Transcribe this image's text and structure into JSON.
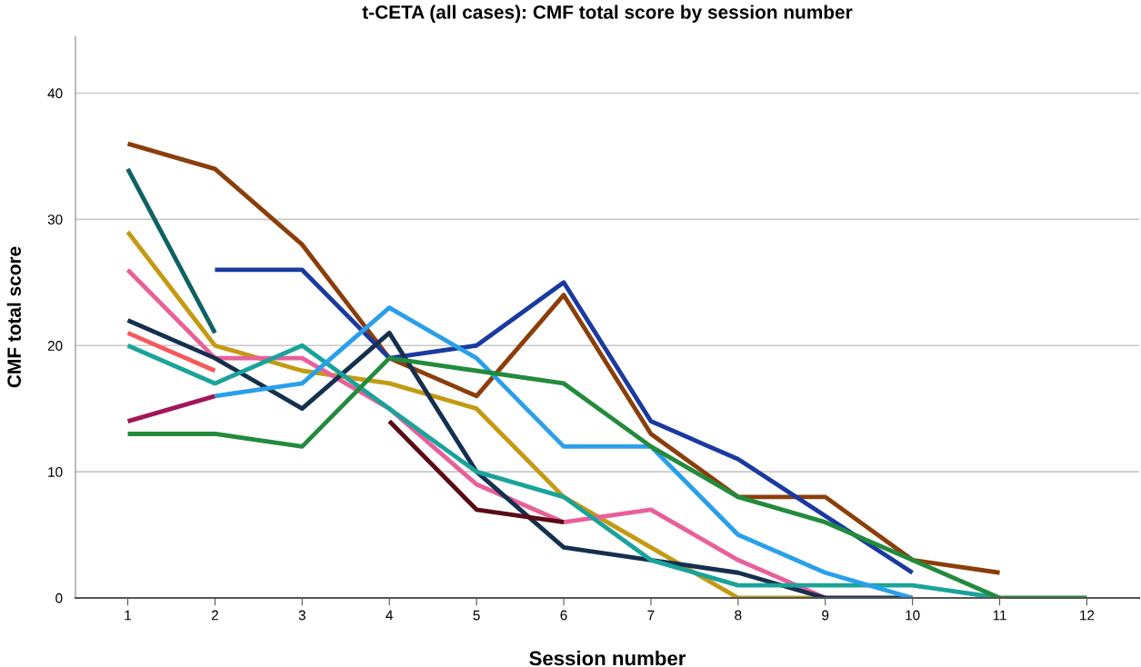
{
  "chart_data": {
    "type": "line",
    "title": "t-CETA (all cases): CMF total score by session number",
    "xlabel": "Session number",
    "ylabel": "CMF total score",
    "x": [
      1,
      2,
      3,
      4,
      5,
      6,
      7,
      8,
      9,
      10,
      11,
      12
    ],
    "series": [
      {
        "color": "#8b3e0a",
        "values": [
          36,
          34,
          28,
          19,
          16,
          24,
          13,
          8,
          8,
          3,
          2,
          null
        ]
      },
      {
        "color": "#0e6262",
        "values": [
          34,
          21,
          null,
          null,
          null,
          null,
          null,
          null,
          null,
          null,
          null,
          null
        ]
      },
      {
        "color": "#c39a12",
        "values": [
          29,
          20,
          18,
          17,
          15,
          8,
          4,
          0,
          0,
          null,
          null,
          null
        ]
      },
      {
        "color": "#e8609a",
        "values": [
          26,
          19,
          19,
          15,
          9,
          6,
          7,
          3,
          0,
          null,
          null,
          null
        ]
      },
      {
        "color": "#1a3aa0",
        "values": [
          null,
          26,
          26,
          19,
          20,
          25,
          14,
          11,
          6.5,
          2,
          null,
          null
        ]
      },
      {
        "color": "#15304f",
        "values": [
          22,
          19,
          15,
          21,
          10,
          4,
          3,
          2,
          0,
          0,
          null,
          null
        ]
      },
      {
        "color": "#f5595a",
        "values": [
          21,
          18,
          null,
          null,
          null,
          null,
          null,
          null,
          null,
          null,
          null,
          null
        ]
      },
      {
        "color": "#1aa39a",
        "values": [
          20,
          17,
          20,
          15,
          10,
          8,
          3,
          1,
          1,
          1,
          0,
          null
        ]
      },
      {
        "color": "#2a9fea",
        "values": [
          null,
          16,
          17,
          23,
          19,
          12,
          12,
          5,
          2,
          0,
          null,
          null
        ]
      },
      {
        "color": "#a3155a",
        "values": [
          14,
          16,
          null,
          null,
          null,
          null,
          null,
          null,
          null,
          null,
          null,
          null
        ]
      },
      {
        "color": "#228b3c",
        "values": [
          13,
          13,
          12,
          19,
          18,
          17,
          12,
          8,
          6,
          3,
          0,
          0
        ]
      },
      {
        "color": "#5a0a14",
        "values": [
          null,
          null,
          null,
          14,
          7,
          6,
          null,
          null,
          null,
          null,
          null,
          null
        ]
      }
    ],
    "xlim": [
      0.4,
      12.6
    ],
    "xticks": [
      1,
      2,
      3,
      4,
      5,
      6,
      7,
      8,
      9,
      10,
      11,
      12
    ],
    "ylim": [
      0,
      44.5
    ],
    "yticks": [
      0,
      10,
      20,
      30,
      40
    ],
    "grid": "y"
  }
}
